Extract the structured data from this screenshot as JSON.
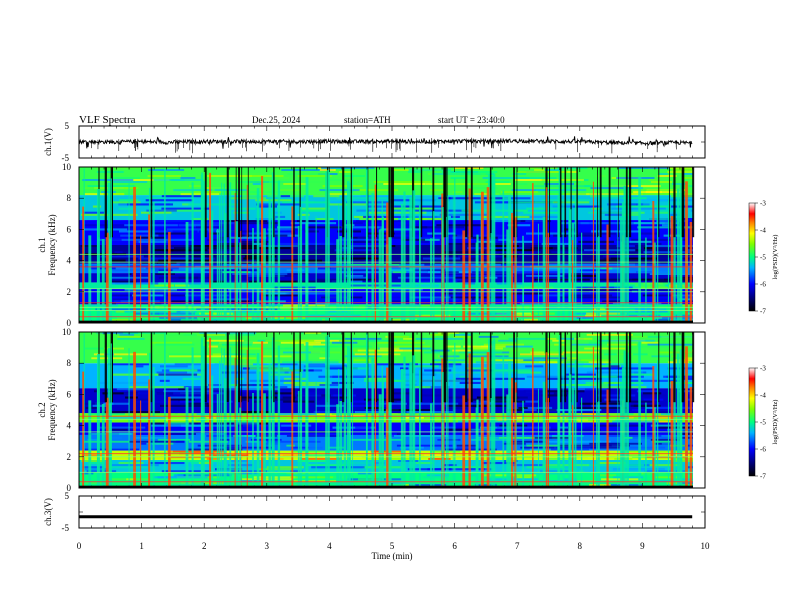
{
  "header": {
    "title": "VLF Spectra",
    "date": "Dec.25, 2024",
    "station": "station=ATH",
    "start_ut": "start UT = 23:40:0"
  },
  "chart_data": [
    {
      "type": "line",
      "panel": "ch1-waveform",
      "ylabel": "ch.1(V)",
      "ylim": [
        -5,
        5
      ],
      "y_ticks": [
        "5",
        "-5"
      ],
      "xlim": [
        0,
        10
      ],
      "x": [
        0,
        0.5,
        1,
        1.5,
        2,
        2.5,
        3,
        3.5,
        4,
        4.5,
        5,
        5.5,
        6,
        6.5,
        7,
        7.5,
        8,
        8.5,
        9,
        9.5,
        9.8
      ],
      "y": [
        0.1,
        0,
        0.1,
        -0.1,
        0.2,
        0.1,
        0.2,
        0.1,
        0.2,
        0.1,
        0.2,
        0.1,
        0.3,
        0.2,
        0.4,
        0.2,
        0.1,
        -0.2,
        -0.4,
        -0.2,
        -0.3
      ],
      "color": "#000000"
    },
    {
      "type": "heatmap",
      "panel": "ch1-spectrogram",
      "ylabel_top": "ch.1",
      "ylabel": "Frequency (kHz)",
      "ylim": [
        0,
        10
      ],
      "y_ticks": [
        "0",
        "2",
        "4",
        "6",
        "8",
        "10"
      ],
      "colorbar_label": "log(PSD)(V²/Hz)",
      "colorbar_range": [
        -7,
        -3
      ],
      "colorbar_ticks": [
        "-3",
        "-4",
        "-5",
        "-6",
        "-7"
      ],
      "hum_lines_khz": [
        0.4,
        0.8,
        1.0,
        1.3,
        2.0,
        2.2,
        3.6,
        3.9,
        4.4
      ],
      "bands": [
        {
          "from_khz": 0,
          "to_khz": 1.2,
          "level": -5.0
        },
        {
          "from_khz": 1.2,
          "to_khz": 2.2,
          "level": -6.0
        },
        {
          "from_khz": 2.2,
          "to_khz": 2.6,
          "level": -5.1
        },
        {
          "from_khz": 2.6,
          "to_khz": 3.2,
          "level": -6.2
        },
        {
          "from_khz": 3.2,
          "to_khz": 3.8,
          "level": -5.6
        },
        {
          "from_khz": 3.8,
          "to_khz": 5.0,
          "level": -6.4
        },
        {
          "from_khz": 5.0,
          "to_khz": 6.6,
          "level": -6.0
        },
        {
          "from_khz": 6.6,
          "to_khz": 8.2,
          "level": -5.3
        },
        {
          "from_khz": 8.2,
          "to_khz": 10,
          "level": -4.8
        }
      ]
    },
    {
      "type": "heatmap",
      "panel": "ch2-spectrogram",
      "ylabel_top": "ch.2",
      "ylabel": "Frequency (kHz)",
      "ylim": [
        0,
        10
      ],
      "y_ticks": [
        "0",
        "2",
        "4",
        "6",
        "8",
        "10"
      ],
      "colorbar_label": "log(PSD)(V²/Hz)",
      "colorbar_range": [
        -7,
        -3
      ],
      "colorbar_ticks": [
        "-3",
        "-4",
        "-5",
        "-6",
        "-7"
      ],
      "hum_lines_khz": [
        0.4,
        1.0,
        2.0,
        2.2,
        3.6,
        4.4,
        4.6
      ],
      "bands": [
        {
          "from_khz": 0,
          "to_khz": 1.0,
          "level": -5.0
        },
        {
          "from_khz": 1.0,
          "to_khz": 1.8,
          "level": -5.3
        },
        {
          "from_khz": 1.8,
          "to_khz": 2.4,
          "level": -4.3
        },
        {
          "from_khz": 2.4,
          "to_khz": 3.4,
          "level": -5.6
        },
        {
          "from_khz": 3.4,
          "to_khz": 4.2,
          "level": -6.0
        },
        {
          "from_khz": 4.2,
          "to_khz": 4.8,
          "level": -4.6
        },
        {
          "from_khz": 4.8,
          "to_khz": 6.4,
          "level": -6.2
        },
        {
          "from_khz": 6.4,
          "to_khz": 8.0,
          "level": -5.4
        },
        {
          "from_khz": 8.0,
          "to_khz": 10,
          "level": -4.8
        }
      ]
    },
    {
      "type": "line",
      "panel": "ch3-waveform",
      "ylabel": "ch.3(V)",
      "ylim": [
        -5,
        5
      ],
      "y_ticks": [
        "5",
        "-5"
      ],
      "xlim": [
        0,
        10
      ],
      "x": [
        0,
        9.8
      ],
      "y": [
        -1.5,
        -1.5
      ],
      "color": "#000000",
      "xlabel": "Time (min)",
      "x_ticks": [
        "0",
        "1",
        "2",
        "3",
        "4",
        "5",
        "6",
        "7",
        "8",
        "9",
        "10"
      ]
    }
  ]
}
